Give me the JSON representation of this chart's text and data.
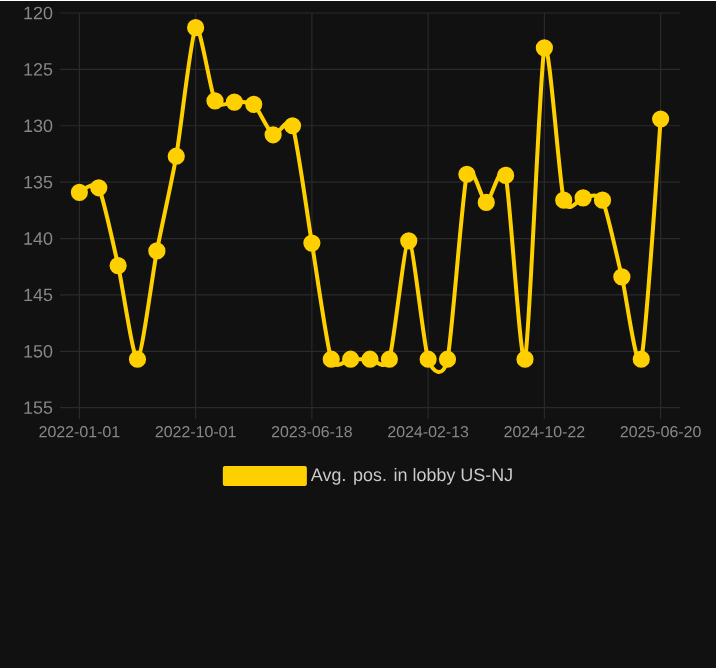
{
  "chart_data": {
    "type": "line",
    "categories": [
      "2022-01-01",
      null,
      null,
      null,
      null,
      null,
      "2022-10-01",
      null,
      null,
      null,
      null,
      null,
      "2023-06-18",
      null,
      null,
      null,
      null,
      null,
      "2024-02-13",
      null,
      null,
      null,
      null,
      null,
      "2024-10-22",
      null,
      null,
      null,
      null,
      null,
      "2025-06-20"
    ],
    "series": [
      {
        "name": "Avg. pos. in lobby US-NJ",
        "color": "#ffd000",
        "values": [
          135.9,
          135.5,
          142.4,
          150.7,
          141.1,
          132.7,
          121.3,
          127.8,
          127.9,
          128.1,
          130.8,
          130.0,
          140.4,
          150.7,
          150.7,
          150.7,
          150.7,
          140.2,
          150.7,
          150.7,
          134.3,
          136.8,
          134.4,
          150.7,
          123.1,
          136.6,
          136.4,
          136.6,
          143.4,
          150.7,
          129.4
        ]
      }
    ],
    "ylim": [
      156,
      120
    ],
    "yticks": [
      120,
      125,
      130,
      135,
      140,
      145,
      150,
      155
    ],
    "grid": true,
    "legend": "bottom",
    "marker": "circle",
    "line_style": "solid"
  }
}
